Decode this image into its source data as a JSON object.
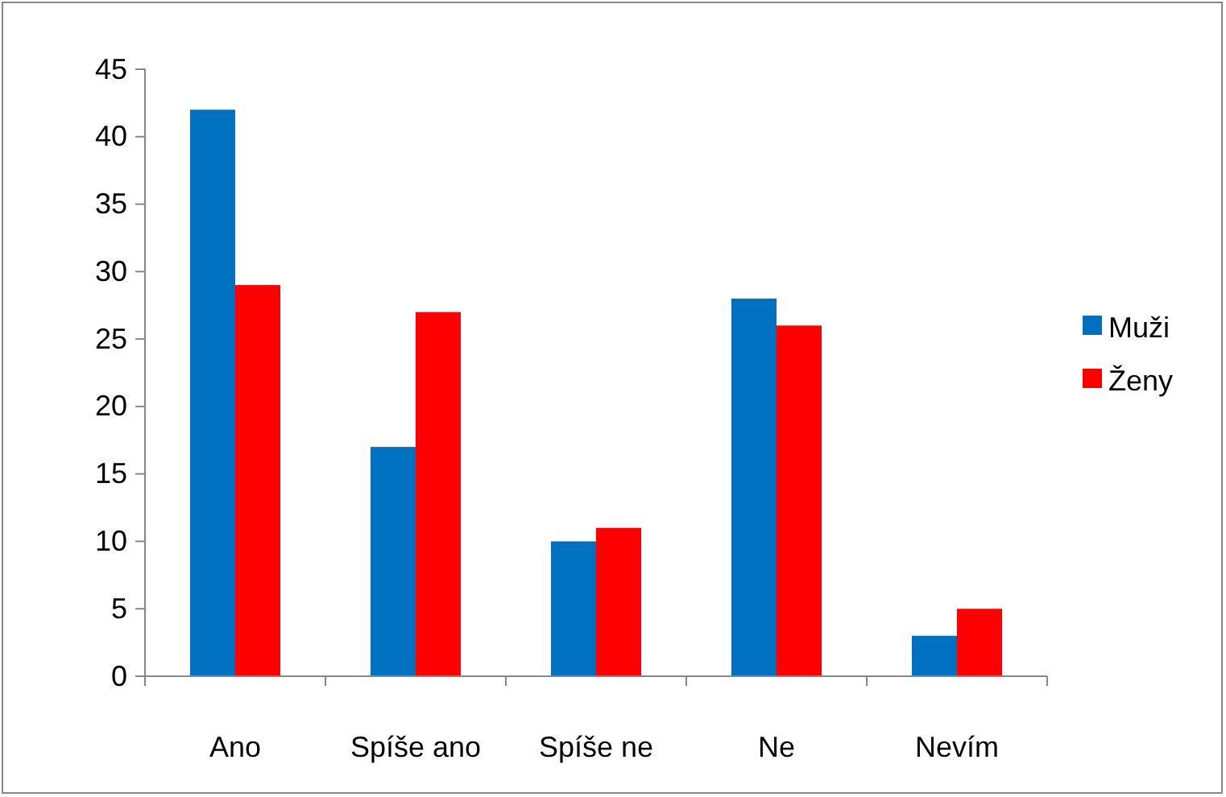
{
  "chart_data": {
    "type": "bar",
    "categories": [
      "Ano",
      "Spíše ano",
      "Spíše ne",
      "Ne",
      "Nevím"
    ],
    "series": [
      {
        "name": "Muži",
        "color": "#0070c0",
        "values": [
          42,
          17,
          10,
          28,
          3
        ]
      },
      {
        "name": "Ženy",
        "color": "#ff0000",
        "values": [
          29,
          27,
          11,
          26,
          5
        ]
      }
    ],
    "ylim": [
      0,
      45
    ],
    "yticks": [
      0,
      5,
      10,
      15,
      20,
      25,
      30,
      35,
      40,
      45
    ],
    "grid": false,
    "legend": "right"
  }
}
